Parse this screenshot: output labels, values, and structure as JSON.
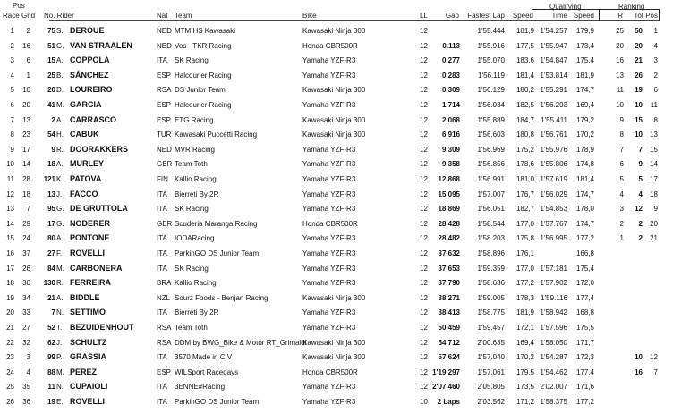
{
  "headers": {
    "pos_group": "Pos",
    "race": "Race",
    "grid": "Grid",
    "no_rider": "No. Rider",
    "nat": "Nat",
    "team": "Team",
    "bike": "Bike",
    "ll": "LL",
    "gap": "Gap",
    "fastest_lap": "Fastest Lap",
    "speed": "Speed",
    "qualifying_group": "Qualifying",
    "q_time": "Time",
    "q_speed": "Speed",
    "ranking_group": "Ranking",
    "r": "R",
    "tot": "Tot",
    "pos": "Pos"
  },
  "rows": [
    {
      "race": "1",
      "grid": "2",
      "no": "75",
      "initial": "S.",
      "name": "DEROUE",
      "nat": "NED",
      "team": "MTM HS Kawasaki",
      "bike": "Kawasaki Ninja 300",
      "ll": "12",
      "gap": "",
      "fl": "1'55.444",
      "spd": "181,9",
      "qt": "1'54.257",
      "qs": "179,9",
      "r": "25",
      "tot": "50",
      "pos": "1"
    },
    {
      "race": "2",
      "grid": "16",
      "no": "51",
      "initial": "G.",
      "name": "VAN STRAALEN",
      "nat": "NED",
      "team": "Vos - TKR Racing",
      "bike": "Honda CBR500R",
      "ll": "12",
      "gap": "0.113",
      "fl": "1'55.916",
      "spd": "177,5",
      "qt": "1'55.947",
      "qs": "173,4",
      "r": "20",
      "tot": "20",
      "pos": "4"
    },
    {
      "race": "3",
      "grid": "6",
      "no": "15",
      "initial": "A.",
      "name": "COPPOLA",
      "nat": "ITA",
      "team": "SK Racing",
      "bike": "Yamaha YZF-R3",
      "ll": "12",
      "gap": "0.277",
      "fl": "1'55.070",
      "spd": "183,6",
      "qt": "1'54.847",
      "qs": "175,4",
      "r": "16",
      "tot": "21",
      "pos": "3"
    },
    {
      "race": "4",
      "grid": "1",
      "no": "25",
      "initial": "B.",
      "name": "SÁNCHEZ",
      "nat": "ESP",
      "team": "Halcourier Racing",
      "bike": "Yamaha YZF-R3",
      "ll": "12",
      "gap": "0.283",
      "fl": "1'56.119",
      "spd": "181,4",
      "qt": "1'53.814",
      "qs": "181,9",
      "r": "13",
      "tot": "26",
      "pos": "2"
    },
    {
      "race": "5",
      "grid": "10",
      "no": "20",
      "initial": "D.",
      "name": "LOUREIRO",
      "nat": "RSA",
      "team": "DS Junior Team",
      "bike": "Kawasaki Ninja 300",
      "ll": "12",
      "gap": "0.309",
      "fl": "1'56.129",
      "spd": "180,2",
      "qt": "1'55.291",
      "qs": "174,7",
      "r": "11",
      "tot": "19",
      "pos": "6"
    },
    {
      "race": "6",
      "grid": "20",
      "no": "41",
      "initial": "M.",
      "name": "GARCIA",
      "nat": "ESP",
      "team": "Halcourier Racing",
      "bike": "Yamaha YZF-R3",
      "ll": "12",
      "gap": "1.714",
      "fl": "1'56.034",
      "spd": "182,5",
      "qt": "1'56.293",
      "qs": "169,4",
      "r": "10",
      "tot": "10",
      "pos": "11"
    },
    {
      "race": "7",
      "grid": "13",
      "no": "2",
      "initial": "A.",
      "name": "CARRASCO",
      "nat": "ESP",
      "team": "ETG Racing",
      "bike": "Kawasaki Ninja 300",
      "ll": "12",
      "gap": "2.068",
      "fl": "1'55.889",
      "spd": "184,7",
      "qt": "1'55.411",
      "qs": "179,2",
      "r": "9",
      "tot": "15",
      "pos": "8"
    },
    {
      "race": "8",
      "grid": "23",
      "no": "54",
      "initial": "H.",
      "name": "CABUK",
      "nat": "TUR",
      "team": "Kawasaki Puccetti Racing",
      "bike": "Kawasaki Ninja 300",
      "ll": "12",
      "gap": "6.916",
      "fl": "1'56.603",
      "spd": "180,8",
      "qt": "1'56.761",
      "qs": "170,2",
      "r": "8",
      "tot": "10",
      "pos": "13"
    },
    {
      "race": "9",
      "grid": "17",
      "no": "9",
      "initial": "R.",
      "name": "DOORAKKERS",
      "nat": "NED",
      "team": "MVR Racing",
      "bike": "Yamaha YZF-R3",
      "ll": "12",
      "gap": "9.309",
      "fl": "1'56.969",
      "spd": "175,2",
      "qt": "1'55.976",
      "qs": "178,9",
      "r": "7",
      "tot": "7",
      "pos": "15"
    },
    {
      "race": "10",
      "grid": "14",
      "no": "18",
      "initial": "A.",
      "name": "MURLEY",
      "nat": "GBR",
      "team": "Team Toth",
      "bike": "Yamaha YZF-R3",
      "ll": "12",
      "gap": "9.358",
      "fl": "1'56.856",
      "spd": "178,6",
      "qt": "1'55.806",
      "qs": "174,8",
      "r": "6",
      "tot": "9",
      "pos": "14"
    },
    {
      "race": "11",
      "grid": "28",
      "no": "121",
      "initial": "K.",
      "name": "PATOVA",
      "nat": "FIN",
      "team": "Kallio Racing",
      "bike": "Yamaha YZF-R3",
      "ll": "12",
      "gap": "12.868",
      "fl": "1'56.991",
      "spd": "181,0",
      "qt": "1'57.619",
      "qs": "181,4",
      "r": "5",
      "tot": "5",
      "pos": "17"
    },
    {
      "race": "12",
      "grid": "18",
      "no": "13",
      "initial": "J.",
      "name": "FACCO",
      "nat": "ITA",
      "team": "Bierreti By 2R",
      "bike": "Yamaha YZF-R3",
      "ll": "12",
      "gap": "15.095",
      "fl": "1'57.007",
      "spd": "176,7",
      "qt": "1'56.029",
      "qs": "174,7",
      "r": "4",
      "tot": "4",
      "pos": "18"
    },
    {
      "race": "13",
      "grid": "7",
      "no": "95",
      "initial": "G.",
      "name": "DE GRUTTOLA",
      "nat": "ITA",
      "team": "SK Racing",
      "bike": "Yamaha YZF-R3",
      "ll": "12",
      "gap": "18.869",
      "fl": "1'56.051",
      "spd": "182,7",
      "qt": "1'54.853",
      "qs": "178,0",
      "r": "3",
      "tot": "12",
      "pos": "9"
    },
    {
      "race": "14",
      "grid": "29",
      "no": "17",
      "initial": "G.",
      "name": "NODERER",
      "nat": "GER",
      "team": "Scuderia Maranga Racing",
      "bike": "Honda CBR500R",
      "ll": "12",
      "gap": "28.428",
      "fl": "1'58.544",
      "spd": "177,0",
      "qt": "1'57.767",
      "qs": "174,7",
      "r": "2",
      "tot": "2",
      "pos": "20"
    },
    {
      "race": "15",
      "grid": "24",
      "no": "80",
      "initial": "A.",
      "name": "PONTONE",
      "nat": "ITA",
      "team": "IODARacing",
      "bike": "Yamaha YZF-R3",
      "ll": "12",
      "gap": "28.482",
      "fl": "1'58.203",
      "spd": "175,8",
      "qt": "1'56.995",
      "qs": "177,2",
      "r": "1",
      "tot": "2",
      "pos": "21"
    },
    {
      "race": "16",
      "grid": "37",
      "no": "27",
      "initial": "F.",
      "name": "ROVELLI",
      "nat": "ITA",
      "team": "ParkinGO DS Junior Team",
      "bike": "Yamaha YZF-R3",
      "ll": "12",
      "gap": "37.632",
      "fl": "1'58.896",
      "spd": "176,1",
      "qt": "",
      "qs": "166,8",
      "r": "",
      "tot": "",
      "pos": ""
    },
    {
      "race": "17",
      "grid": "26",
      "no": "84",
      "initial": "M.",
      "name": "CARBONERA",
      "nat": "ITA",
      "team": "SK Racing",
      "bike": "Yamaha YZF-R3",
      "ll": "12",
      "gap": "37.653",
      "fl": "1'59.359",
      "spd": "177,0",
      "qt": "1'57.181",
      "qs": "175,4",
      "r": "",
      "tot": "",
      "pos": ""
    },
    {
      "race": "18",
      "grid": "30",
      "no": "130",
      "initial": "R.",
      "name": "FERREIRA",
      "nat": "BRA",
      "team": "Kallio Racing",
      "bike": "Yamaha YZF-R3",
      "ll": "12",
      "gap": "37.790",
      "fl": "1'58.636",
      "spd": "177,2",
      "qt": "1'57.902",
      "qs": "172,0",
      "r": "",
      "tot": "",
      "pos": ""
    },
    {
      "race": "19",
      "grid": "34",
      "no": "21",
      "initial": "A.",
      "name": "BIDDLE",
      "nat": "NZL",
      "team": "Sourz Foods - Benjan Racing",
      "bike": "Kawasaki Ninja 300",
      "ll": "12",
      "gap": "38.271",
      "fl": "1'59.005",
      "spd": "178,3",
      "qt": "1'59.116",
      "qs": "177,4",
      "r": "",
      "tot": "",
      "pos": ""
    },
    {
      "race": "20",
      "grid": "33",
      "no": "7",
      "initial": "N.",
      "name": "SETTIMO",
      "nat": "ITA",
      "team": "Bierreti By 2R",
      "bike": "Yamaha YZF-R3",
      "ll": "12",
      "gap": "38.413",
      "fl": "1'58.775",
      "spd": "181,9",
      "qt": "1'58.942",
      "qs": "168,8",
      "r": "",
      "tot": "",
      "pos": ""
    },
    {
      "race": "21",
      "grid": "27",
      "no": "52",
      "initial": "T.",
      "name": "BEZUIDENHOUT",
      "nat": "RSA",
      "team": "Team Toth",
      "bike": "Yamaha YZF-R3",
      "ll": "12",
      "gap": "50.459",
      "fl": "1'59.457",
      "spd": "172,1",
      "qt": "1'57.596",
      "qs": "175,5",
      "r": "",
      "tot": "",
      "pos": ""
    },
    {
      "race": "22",
      "grid": "32",
      "no": "62",
      "initial": "J.",
      "name": "SCHULTZ",
      "nat": "RSA",
      "team": "DDM by BWG_Bike & Motor RT_Grimaldi",
      "bike": "Kawasaki Ninja 300",
      "ll": "12",
      "gap": "54.712",
      "fl": "2'00.635",
      "spd": "169,4",
      "qt": "1'58.050",
      "qs": "171,7",
      "r": "",
      "tot": "",
      "pos": ""
    },
    {
      "race": "23",
      "grid": "3",
      "no": "99",
      "initial": "P.",
      "name": "GRASSIA",
      "nat": "ITA",
      "team": "3570 Made in CIV",
      "bike": "Kawasaki Ninja 300",
      "ll": "12",
      "gap": "57.624",
      "fl": "1'57.040",
      "spd": "170,2",
      "qt": "1'54.287",
      "qs": "172,3",
      "r": "",
      "tot": "10",
      "pos": "12"
    },
    {
      "race": "24",
      "grid": "4",
      "no": "88",
      "initial": "M.",
      "name": "PEREZ",
      "nat": "ESP",
      "team": "WILSport Racedays",
      "bike": "Honda CBR500R",
      "ll": "12",
      "gap": "1'19.297",
      "fl": "1'57.061",
      "spd": "179,5",
      "qt": "1'54.462",
      "qs": "177,4",
      "r": "",
      "tot": "16",
      "pos": "7"
    },
    {
      "race": "25",
      "grid": "35",
      "no": "11",
      "initial": "N.",
      "name": "CUPAIOLI",
      "nat": "ITA",
      "team": "3ENNE#Racing",
      "bike": "Yamaha YZF-R3",
      "ll": "12",
      "gap": "2'07.460",
      "fl": "2'05.805",
      "spd": "173,5",
      "qt": "2'02.007",
      "qs": "171,6",
      "r": "",
      "tot": "",
      "pos": ""
    },
    {
      "race": "26",
      "grid": "36",
      "no": "19",
      "initial": "E.",
      "name": "ROVELLI",
      "nat": "ITA",
      "team": "ParkinGO DS Junior Team",
      "bike": "Yamaha YZF-R3",
      "ll": "10",
      "gap": "2 Laps",
      "fl": "2'03.562",
      "spd": "171,2",
      "qt": "1'58.375",
      "qs": "177,2",
      "r": "",
      "tot": "",
      "pos": ""
    }
  ]
}
